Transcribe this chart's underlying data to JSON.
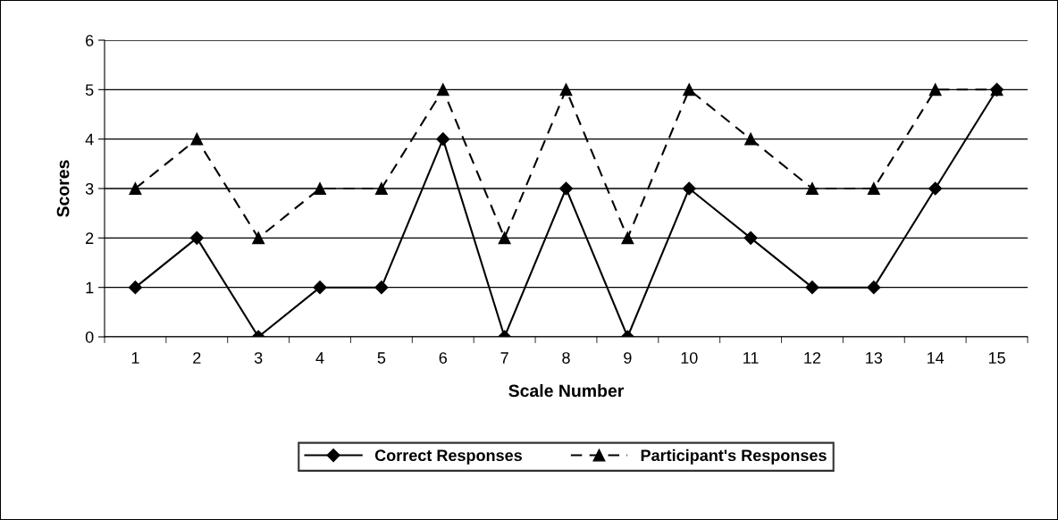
{
  "chart_data": {
    "type": "line",
    "xlabel": "Scale Number",
    "ylabel": "Scores",
    "categories": [
      "1",
      "2",
      "3",
      "4",
      "5",
      "6",
      "7",
      "8",
      "9",
      "10",
      "11",
      "12",
      "13",
      "14",
      "15"
    ],
    "series": [
      {
        "name": "Correct Responses",
        "color": "#000000",
        "marker": "diamond",
        "line_style": "solid",
        "values": [
          1,
          2,
          0,
          1,
          1,
          4,
          0,
          3,
          0,
          3,
          2,
          1,
          1,
          3,
          5
        ]
      },
      {
        "name": "Participant's Responses",
        "color": "#000000",
        "marker": "triangle",
        "line_style": "dashed",
        "values": [
          3,
          4,
          2,
          3,
          3,
          5,
          2,
          5,
          2,
          5,
          4,
          3,
          3,
          5,
          5
        ]
      }
    ],
    "ylim": [
      0,
      6
    ],
    "yticks": [
      0,
      1,
      2,
      3,
      4,
      5,
      6
    ],
    "grid": "y",
    "legend": "bottom"
  }
}
